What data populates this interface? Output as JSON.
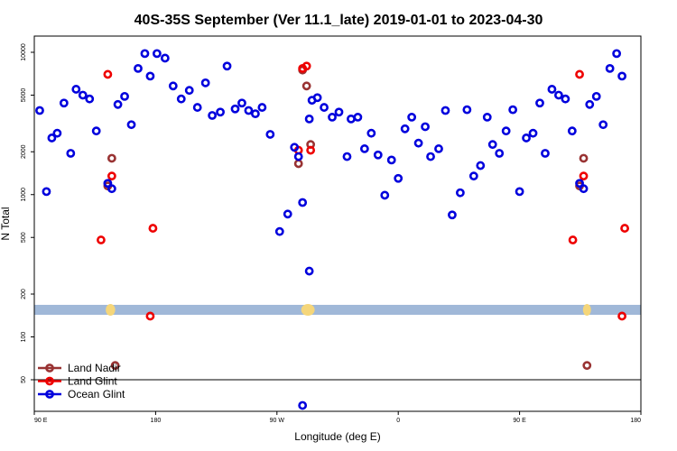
{
  "chart_data": {
    "type": "scatter",
    "title": "40S-35S September (Ver 11.1_late)   2019-01-01 to 2023-04-30",
    "xlabel": "Longitude (deg E)",
    "ylabel": "N Total",
    "y_scale": "log",
    "ylim": [
      30,
      13000
    ],
    "xlim": [
      90,
      540
    ],
    "x_ticks": [
      {
        "value": 90,
        "label": "90 E"
      },
      {
        "value": 180,
        "label": "180"
      },
      {
        "value": 270,
        "label": "90 W"
      },
      {
        "value": 360,
        "label": "0"
      },
      {
        "value": 450,
        "label": "90 E"
      },
      {
        "value": 540,
        "label": "180"
      }
    ],
    "y_ticks": [
      {
        "value": 50,
        "label": "50"
      },
      {
        "value": 100,
        "label": "100"
      },
      {
        "value": 200,
        "label": "200"
      },
      {
        "value": 500,
        "label": "500"
      },
      {
        "value": 1000,
        "label": "1000"
      },
      {
        "value": 2000,
        "label": "2000"
      },
      {
        "value": 5000,
        "label": "5000"
      },
      {
        "value": 10000,
        "label": "10000"
      }
    ],
    "grid": false,
    "legend_position": "bottom-left",
    "land_band": {
      "ymin": 143,
      "ymax": 168,
      "color": "#a0b8d8"
    },
    "land_blobs": [
      {
        "xmin": 143,
        "xmax": 150,
        "color": "#f5d67a"
      },
      {
        "xmin": 288,
        "xmax": 298,
        "color": "#f5d67a"
      },
      {
        "xmin": 497,
        "xmax": 503,
        "color": "#f5d67a"
      }
    ],
    "series": [
      {
        "name": "Land Nadir",
        "color": "#993333",
        "points": [
          [
            144.5,
            1150
          ],
          [
            147.5,
            1800
          ],
          [
            150,
            63
          ],
          [
            286,
            1650
          ],
          [
            289,
            7500
          ],
          [
            292,
            5800
          ],
          [
            295,
            2250
          ],
          [
            494.5,
            1150
          ],
          [
            497.5,
            1800
          ],
          [
            500,
            63
          ]
        ]
      },
      {
        "name": "Land Glint",
        "color": "#ee0000",
        "points": [
          [
            139.5,
            480
          ],
          [
            144.5,
            7000
          ],
          [
            147.5,
            1350
          ],
          [
            176,
            140
          ],
          [
            178,
            580
          ],
          [
            286,
            2050
          ],
          [
            289,
            7700
          ],
          [
            292,
            8000
          ],
          [
            295,
            2050
          ],
          [
            489.5,
            480
          ],
          [
            494.5,
            7000
          ],
          [
            497.5,
            1350
          ],
          [
            526,
            140
          ],
          [
            528,
            580
          ]
        ]
      },
      {
        "name": "Ocean Glint",
        "color": "#0000dd",
        "points": [
          [
            94,
            3900
          ],
          [
            99,
            1050
          ],
          [
            103,
            2500
          ],
          [
            107,
            2700
          ],
          [
            112,
            4400
          ],
          [
            117,
            1950
          ],
          [
            121,
            5500
          ],
          [
            126,
            5000
          ],
          [
            131,
            4700
          ],
          [
            136,
            2800
          ],
          [
            144.5,
            1200
          ],
          [
            147.5,
            1100
          ],
          [
            152,
            4300
          ],
          [
            157,
            4900
          ],
          [
            162,
            3100
          ],
          [
            167,
            7700
          ],
          [
            172,
            9800
          ],
          [
            176,
            6800
          ],
          [
            181,
            9800
          ],
          [
            187,
            9100
          ],
          [
            193,
            5800
          ],
          [
            199,
            4700
          ],
          [
            205,
            5400
          ],
          [
            211,
            4100
          ],
          [
            217,
            6100
          ],
          [
            222,
            3600
          ],
          [
            228,
            3800
          ],
          [
            233,
            8000
          ],
          [
            239,
            4000
          ],
          [
            244,
            4400
          ],
          [
            249,
            3900
          ],
          [
            254,
            3700
          ],
          [
            259,
            4100
          ],
          [
            265,
            2650
          ],
          [
            272,
            550
          ],
          [
            278,
            730
          ],
          [
            283,
            2150
          ],
          [
            286,
            1850
          ],
          [
            289,
            880
          ],
          [
            294,
            3400
          ],
          [
            296,
            4600
          ],
          [
            300,
            4800
          ],
          [
            305,
            4100
          ],
          [
            311,
            3500
          ],
          [
            316,
            3800
          ],
          [
            322,
            1850
          ],
          [
            325,
            3400
          ],
          [
            330,
            3500
          ],
          [
            335,
            2100
          ],
          [
            340,
            2700
          ],
          [
            345,
            1900
          ],
          [
            350,
            990
          ],
          [
            355,
            1750
          ],
          [
            360,
            1300
          ],
          [
            365,
            2900
          ],
          [
            370,
            3500
          ],
          [
            375,
            2300
          ],
          [
            380,
            3000
          ],
          [
            384,
            1850
          ],
          [
            390,
            2100
          ],
          [
            395,
            3900
          ],
          [
            400,
            720
          ],
          [
            406,
            1030
          ],
          [
            411,
            3950
          ],
          [
            416,
            1350
          ],
          [
            421,
            1600
          ],
          [
            426,
            3500
          ],
          [
            430,
            2250
          ],
          [
            435,
            1950
          ],
          [
            440,
            2800
          ],
          [
            445,
            3950
          ],
          [
            450,
            1050
          ],
          [
            455,
            2500
          ],
          [
            460,
            2700
          ],
          [
            465,
            4400
          ],
          [
            469,
            1950
          ],
          [
            474,
            5500
          ],
          [
            479,
            5000
          ],
          [
            484,
            4700
          ],
          [
            489,
            2800
          ],
          [
            494.5,
            1200
          ],
          [
            497.5,
            1100
          ],
          [
            502,
            4300
          ],
          [
            507,
            4900
          ],
          [
            512,
            3100
          ],
          [
            517,
            7700
          ],
          [
            522,
            9800
          ],
          [
            526,
            6800
          ],
          [
            289,
            33
          ],
          [
            294,
            290
          ]
        ]
      }
    ]
  }
}
